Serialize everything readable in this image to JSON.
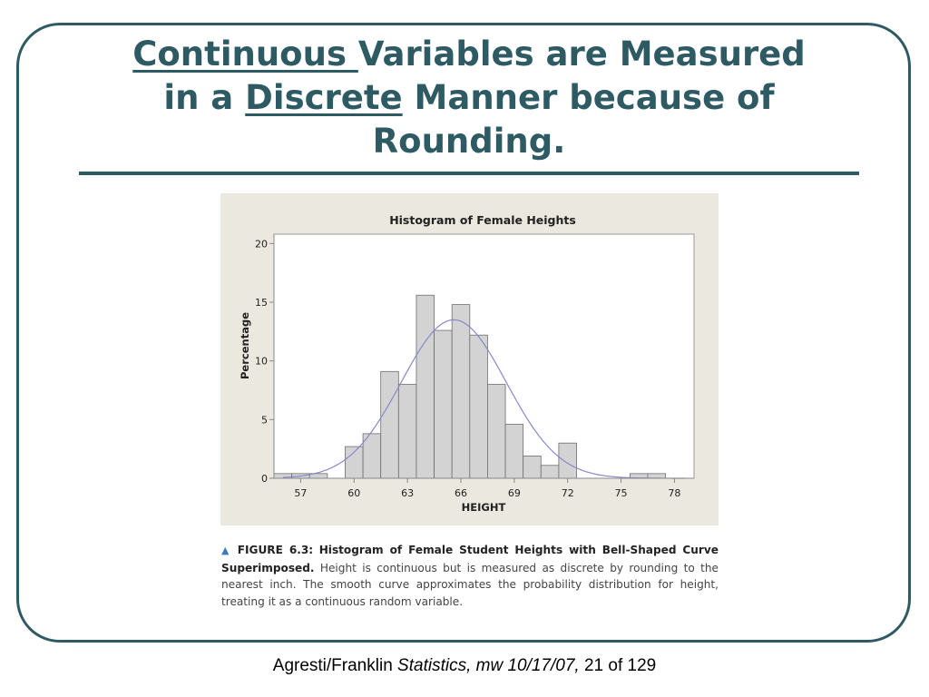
{
  "slide": {
    "title_part1": "Continuous ",
    "title_part2": "Variables are Measured",
    "title_part3": "in a ",
    "title_part4": "Discrete",
    "title_part5": " Manner because of",
    "title_part6": "Rounding.",
    "footer_authors": "Agresti/Franklin ",
    "footer_italic": "Statistics, mw 10/17/07,",
    "footer_page": " 21 of 129"
  },
  "caption": {
    "label": "FIGURE 6.3:",
    "title": "Histogram of Female Student Heights with Bell-Shaped Curve Superimposed.",
    "body": "Height is continuous but is measured as discrete by rounding to the nearest inch. The smooth curve approximates the probability distribution for height, treating it as a continuous random variable."
  },
  "colors": {
    "frame": "#2e5b63",
    "bar_fill": "#d3d3d3",
    "bar_stroke": "#6e6e6e",
    "curve": "#8888cc",
    "caption_marker": "#3a7bbf"
  },
  "chart_data": {
    "type": "bar",
    "title": "Histogram of Female Heights",
    "xlabel": "HEIGHT",
    "ylabel": "Percentage",
    "xlim": [
      55.5,
      79.1
    ],
    "ylim": [
      0,
      20.8
    ],
    "xticks": [
      57,
      60,
      63,
      66,
      69,
      72,
      75,
      78
    ],
    "yticks": [
      0,
      5,
      10,
      15,
      20
    ],
    "bin_width": 1,
    "bins": [
      {
        "x": 56,
        "value": 0.4
      },
      {
        "x": 57,
        "value": 0.4
      },
      {
        "x": 58,
        "value": 0.4
      },
      {
        "x": 60,
        "value": 2.7
      },
      {
        "x": 61,
        "value": 3.8
      },
      {
        "x": 62,
        "value": 9.1
      },
      {
        "x": 63,
        "value": 8.0
      },
      {
        "x": 64,
        "value": 15.6
      },
      {
        "x": 65,
        "value": 12.6
      },
      {
        "x": 66,
        "value": 14.8
      },
      {
        "x": 67,
        "value": 12.2
      },
      {
        "x": 68,
        "value": 8.0
      },
      {
        "x": 69,
        "value": 4.6
      },
      {
        "x": 70,
        "value": 1.9
      },
      {
        "x": 71,
        "value": 1.1
      },
      {
        "x": 72,
        "value": 3.0
      },
      {
        "x": 76,
        "value": 0.4
      },
      {
        "x": 77,
        "value": 0.4
      }
    ],
    "curve": {
      "type": "normal",
      "mean": 65.6,
      "sd": 2.95,
      "peak": 13.5
    },
    "grid": false,
    "legend": "none"
  }
}
